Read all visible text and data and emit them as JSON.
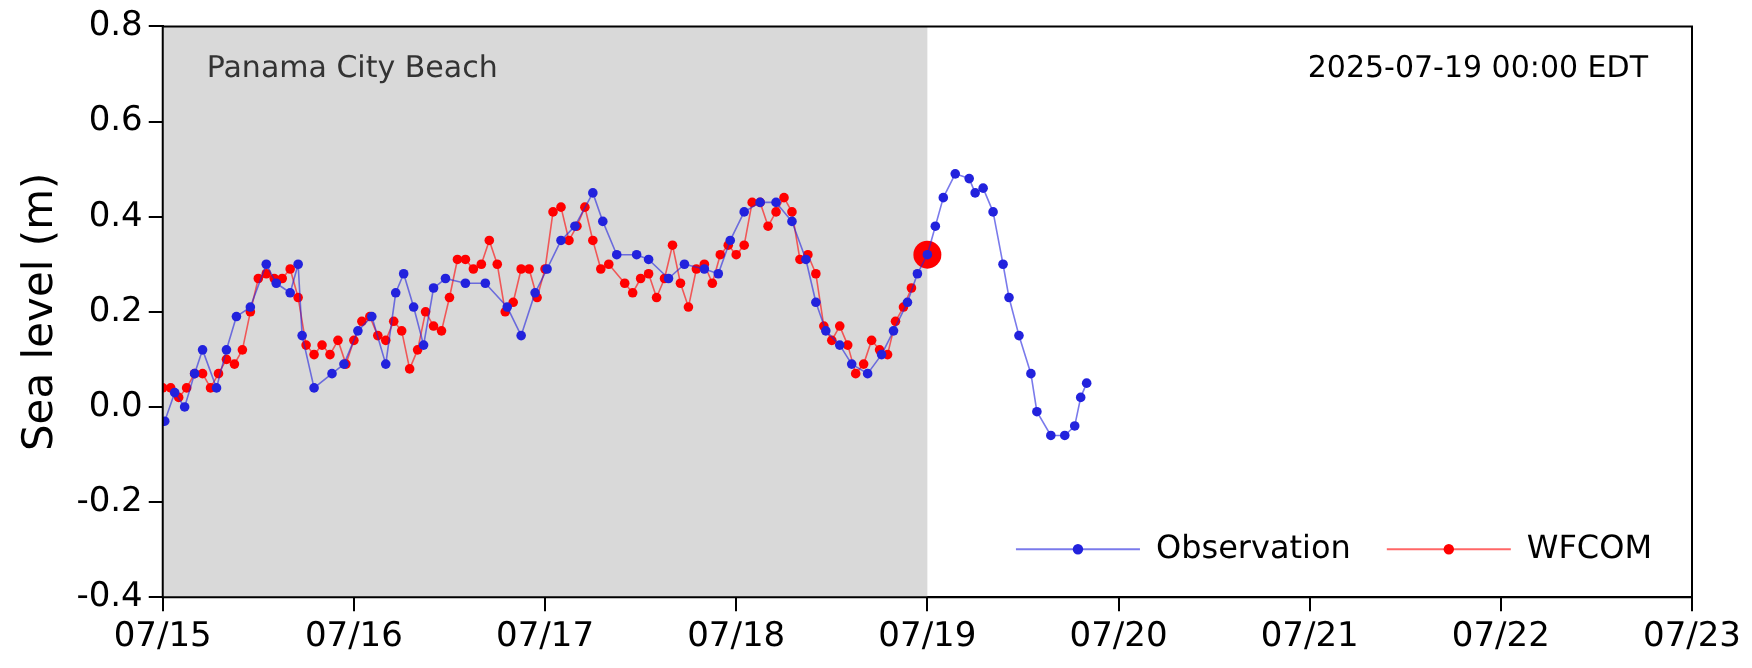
{
  "chart_data": {
    "type": "line",
    "ylabel": "Sea level (m)",
    "xlim": [
      "--07-15",
      "--07-23"
    ],
    "xticks": [
      {
        "value": "--07-15",
        "label": "07/15"
      },
      {
        "value": "--07-16",
        "label": "07/16"
      },
      {
        "value": "--07-17",
        "label": "07/17"
      },
      {
        "value": "--07-18",
        "label": "07/18"
      },
      {
        "value": "--07-19",
        "label": "07/19"
      },
      {
        "value": "--07-20",
        "label": "07/20"
      },
      {
        "value": "--07-21",
        "label": "07/21"
      },
      {
        "value": "--07-22",
        "label": "07/22"
      },
      {
        "value": "--07-23",
        "label": "07/23"
      }
    ],
    "ylim": [
      -0.4,
      0.8
    ],
    "yticks": [
      -0.4,
      -0.2,
      {
        "value": 0,
        "label": "0.0"
      },
      0.2,
      0.4,
      0.6,
      0.8
    ],
    "grid": false,
    "legend": "bottom right",
    "marker": "circle",
    "line_style": "solid",
    "bands": [
      {
        "axis": "x",
        "from": "--07-15",
        "to": "--07-19",
        "label": "Panama City Beach",
        "color": "#d9d9d9"
      }
    ],
    "annotations": [
      "2025-07-19 00:00 EDT"
    ],
    "series": [
      {
        "name": "Observation",
        "color": "#2222dd",
        "x": [
          "--07-15T00:15",
          "--07-15T01:30",
          "--07-15T02:45",
          "--07-15T04:00",
          "--07-15T05:00",
          "--07-15T06:45",
          "--07-15T08:00",
          "--07-15T09:15",
          "--07-15T11:00",
          "--07-15T13:00",
          "--07-15T14:15",
          "--07-15T16:00",
          "--07-15T17:00",
          "--07-15T17:30",
          "--07-15T19:00",
          "--07-15T21:15",
          "--07-15T22:45",
          "--07-16T00:30",
          "--07-16T02:15",
          "--07-16T04:00",
          "--07-16T05:15",
          "--07-16T06:15",
          "--07-16T07:30",
          "--07-16T08:45",
          "--07-16T10:00",
          "--07-16T11:30",
          "--07-16T14:00",
          "--07-16T16:30",
          "--07-16T19:15",
          "--07-16T21:00",
          "--07-16T22:45",
          "--07-17T00:15",
          "--07-17T02:00",
          "--07-17T03:45",
          "--07-17T06:00",
          "--07-17T07:15",
          "--07-17T09:00",
          "--07-17T11:30",
          "--07-17T13:00",
          "--07-17T15:30",
          "--07-17T17:30",
          "--07-17T20:00",
          "--07-17T21:45",
          "--07-17T23:15",
          "--07-18T01:00",
          "--07-18T03:00",
          "--07-18T05:00",
          "--07-18T07:00",
          "--07-18T08:45",
          "--07-18T10:00",
          "--07-18T11:15",
          "--07-18T13:00",
          "--07-18T14:30",
          "--07-18T16:30",
          "--07-18T18:15",
          "--07-18T19:45",
          "--07-18T21:30",
          "--07-18T22:45",
          "--07-19T00:00",
          "--07-19T01:00",
          "--07-19T02:00",
          "--07-19T03:30",
          "--07-19T05:15",
          "--07-19T06:00",
          "--07-19T07:00",
          "--07-19T08:15",
          "--07-19T09:30",
          "--07-19T10:15",
          "--07-19T11:30",
          "--07-19T13:00",
          "--07-19T13:45",
          "--07-19T15:30",
          "--07-19T17:15",
          "--07-19T18:30",
          "--07-19T19:15",
          "--07-19T20:00"
        ],
        "values": [
          -0.03,
          0.03,
          0.0,
          0.07,
          0.12,
          0.04,
          0.12,
          0.19,
          0.21,
          0.3,
          0.26,
          0.24,
          0.3,
          0.15,
          0.04,
          0.07,
          0.09,
          0.16,
          0.19,
          0.09,
          0.24,
          0.28,
          0.21,
          0.13,
          0.25,
          0.27,
          0.26,
          0.26,
          0.21,
          0.15,
          0.24,
          0.29,
          0.35,
          0.38,
          0.45,
          0.39,
          0.32,
          0.32,
          0.31,
          0.27,
          0.3,
          0.29,
          0.28,
          0.35,
          0.41,
          0.43,
          0.43,
          0.39,
          0.31,
          0.22,
          0.16,
          0.13,
          0.09,
          0.07,
          0.11,
          0.16,
          0.22,
          0.28,
          0.32,
          0.38,
          0.44,
          0.49,
          0.48,
          0.45,
          0.46,
          0.41,
          0.3,
          0.23,
          0.15,
          0.07,
          -0.01,
          -0.06,
          -0.06,
          -0.04,
          0.02,
          0.05
        ]
      },
      {
        "name": "WFCOM",
        "color": "#ff0000",
        "x": [
          "--07-15T00:00",
          "--07-15T01:00",
          "--07-15T02:00",
          "--07-15T03:00",
          "--07-15T04:00",
          "--07-15T05:00",
          "--07-15T06:00",
          "--07-15T07:00",
          "--07-15T08:00",
          "--07-15T09:00",
          "--07-15T10:00",
          "--07-15T11:00",
          "--07-15T12:00",
          "--07-15T13:00",
          "--07-15T14:00",
          "--07-15T15:00",
          "--07-15T16:00",
          "--07-15T17:00",
          "--07-15T18:00",
          "--07-15T19:00",
          "--07-15T20:00",
          "--07-15T21:00",
          "--07-15T22:00",
          "--07-15T23:00",
          "--07-16T00:00",
          "--07-16T01:00",
          "--07-16T02:00",
          "--07-16T03:00",
          "--07-16T04:00",
          "--07-16T05:00",
          "--07-16T06:00",
          "--07-16T07:00",
          "--07-16T08:00",
          "--07-16T09:00",
          "--07-16T10:00",
          "--07-16T11:00",
          "--07-16T12:00",
          "--07-16T13:00",
          "--07-16T14:00",
          "--07-16T15:00",
          "--07-16T16:00",
          "--07-16T17:00",
          "--07-16T18:00",
          "--07-16T19:00",
          "--07-16T20:00",
          "--07-16T21:00",
          "--07-16T22:00",
          "--07-16T23:00",
          "--07-17T00:00",
          "--07-17T01:00",
          "--07-17T02:00",
          "--07-17T03:00",
          "--07-17T04:00",
          "--07-17T05:00",
          "--07-17T06:00",
          "--07-17T07:00",
          "--07-17T08:00",
          "--07-17T10:00",
          "--07-17T11:00",
          "--07-17T12:00",
          "--07-17T13:00",
          "--07-17T14:00",
          "--07-17T15:00",
          "--07-17T16:00",
          "--07-17T17:00",
          "--07-17T18:00",
          "--07-17T19:00",
          "--07-17T20:00",
          "--07-17T21:00",
          "--07-17T22:00",
          "--07-17T23:00",
          "--07-18T00:00",
          "--07-18T01:00",
          "--07-18T02:00",
          "--07-18T03:00",
          "--07-18T04:00",
          "--07-18T05:00",
          "--07-18T06:00",
          "--07-18T07:00",
          "--07-18T08:00",
          "--07-18T09:00",
          "--07-18T10:00",
          "--07-18T11:00",
          "--07-18T12:00",
          "--07-18T13:00",
          "--07-18T14:00",
          "--07-18T15:00",
          "--07-18T16:00",
          "--07-18T17:00",
          "--07-18T18:00",
          "--07-18T19:00",
          "--07-18T20:00",
          "--07-18T21:00",
          "--07-18T22:00"
        ],
        "values": [
          0.04,
          0.04,
          0.02,
          0.04,
          0.07,
          0.07,
          0.04,
          0.07,
          0.1,
          0.09,
          0.12,
          0.2,
          0.27,
          0.28,
          0.27,
          0.27,
          0.29,
          0.23,
          0.13,
          0.11,
          0.13,
          0.11,
          0.14,
          0.09,
          0.14,
          0.18,
          0.19,
          0.15,
          0.14,
          0.18,
          0.16,
          0.08,
          0.12,
          0.2,
          0.17,
          0.16,
          0.23,
          0.31,
          0.31,
          0.29,
          0.3,
          0.35,
          0.3,
          0.2,
          0.22,
          0.29,
          0.29,
          0.23,
          0.29,
          0.41,
          0.42,
          0.35,
          0.38,
          0.42,
          0.35,
          0.29,
          0.3,
          0.26,
          0.24,
          0.27,
          0.28,
          0.23,
          0.27,
          0.34,
          0.26,
          0.21,
          0.29,
          0.3,
          0.26,
          0.32,
          0.34,
          0.32,
          0.34,
          0.43,
          0.43,
          0.38,
          0.41,
          0.44,
          0.41,
          0.31,
          0.32,
          0.28,
          0.17,
          0.14,
          0.17,
          0.13,
          0.07,
          0.09,
          0.14,
          0.12,
          0.11,
          0.18,
          0.21,
          0.25
        ]
      },
      {
        "type": "scatter",
        "color": "#ff0000",
        "x": [
          "--07-19T00:00"
        ],
        "values": [
          0.32
        ]
      }
    ]
  }
}
